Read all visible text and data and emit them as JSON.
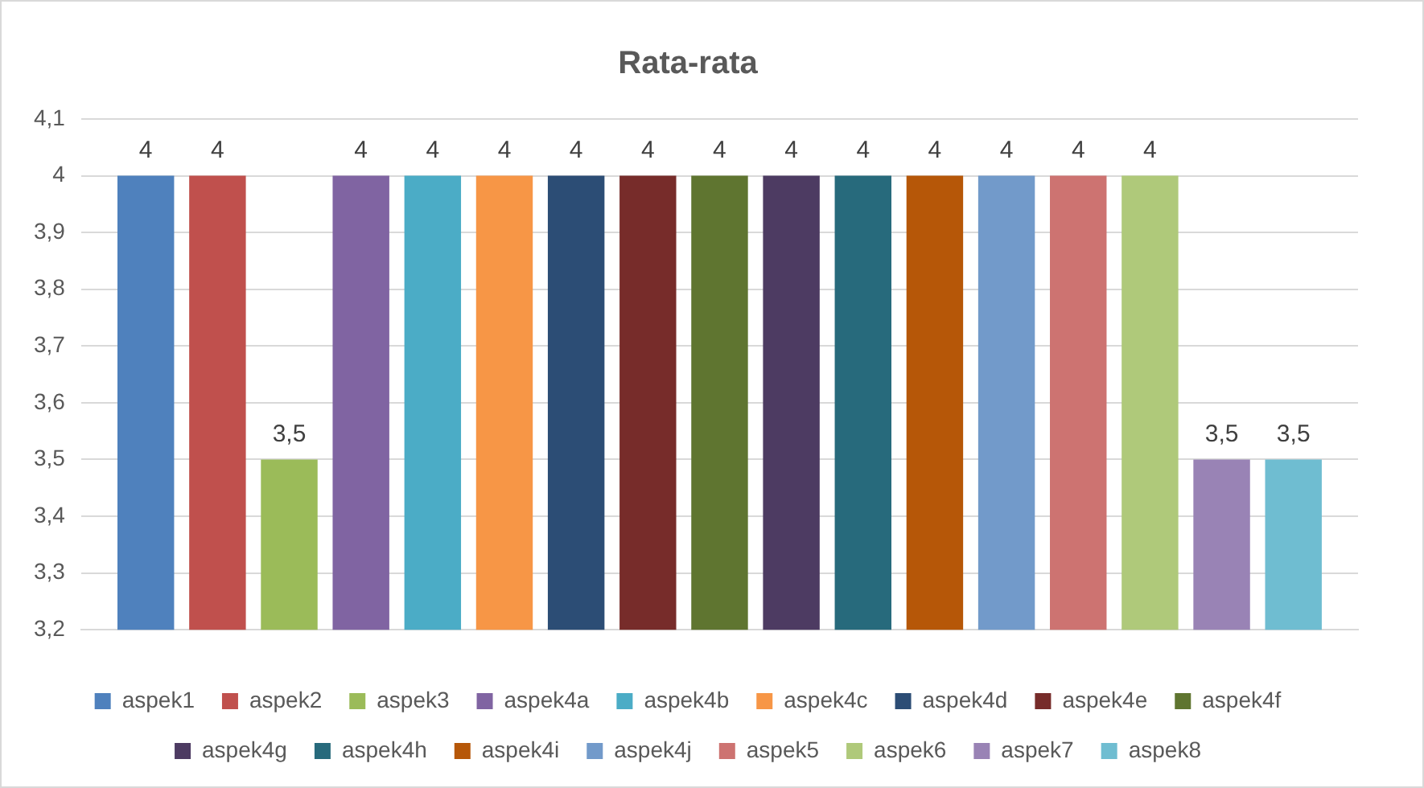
{
  "chart_data": {
    "type": "bar",
    "title": "Rata-rata",
    "categories": [
      null
    ],
    "series": [
      {
        "name": "aspek1",
        "color": "#4f81bd",
        "values": [
          4
        ],
        "value_labels": [
          "4"
        ]
      },
      {
        "name": "aspek2",
        "color": "#c0504d",
        "values": [
          4
        ],
        "value_labels": [
          "4"
        ]
      },
      {
        "name": "aspek3",
        "color": "#9bbb59",
        "values": [
          3.5
        ],
        "value_labels": [
          "3,5"
        ]
      },
      {
        "name": "aspek4a",
        "color": "#8064a2",
        "values": [
          4
        ],
        "value_labels": [
          "4"
        ]
      },
      {
        "name": "aspek4b",
        "color": "#4bacc6",
        "values": [
          4
        ],
        "value_labels": [
          "4"
        ]
      },
      {
        "name": "aspek4c",
        "color": "#f79646",
        "values": [
          4
        ],
        "value_labels": [
          "4"
        ]
      },
      {
        "name": "aspek4d",
        "color": "#2c4d75",
        "values": [
          4
        ],
        "value_labels": [
          "4"
        ]
      },
      {
        "name": "aspek4e",
        "color": "#772c2a",
        "values": [
          4
        ],
        "value_labels": [
          "4"
        ]
      },
      {
        "name": "aspek4f",
        "color": "#5f7530",
        "values": [
          4
        ],
        "value_labels": [
          "4"
        ]
      },
      {
        "name": "aspek4g",
        "color": "#4d3b62",
        "values": [
          4
        ],
        "value_labels": [
          "4"
        ]
      },
      {
        "name": "aspek4h",
        "color": "#276a7c",
        "values": [
          4
        ],
        "value_labels": [
          "4"
        ]
      },
      {
        "name": "aspek4i",
        "color": "#b65708",
        "values": [
          4
        ],
        "value_labels": [
          "4"
        ]
      },
      {
        "name": "aspek4j",
        "color": "#729aca",
        "values": [
          4
        ],
        "value_labels": [
          "4"
        ]
      },
      {
        "name": "aspek5",
        "color": "#cd7371",
        "values": [
          4
        ],
        "value_labels": [
          "4"
        ]
      },
      {
        "name": "aspek6",
        "color": "#afc97a",
        "values": [
          4
        ],
        "value_labels": [
          "4"
        ]
      },
      {
        "name": "aspek7",
        "color": "#9983b5",
        "values": [
          3.5
        ],
        "value_labels": [
          "3,5"
        ]
      },
      {
        "name": "aspek8",
        "color": "#6fbdd1",
        "values": [
          3.5
        ],
        "value_labels": [
          "3,5"
        ]
      }
    ],
    "ylim": [
      3.2,
      4.1
    ],
    "yticks": [
      {
        "value": 3.2,
        "label": "3,2"
      },
      {
        "value": 3.3,
        "label": "3,3"
      },
      {
        "value": 3.4,
        "label": "3,4"
      },
      {
        "value": 3.5,
        "label": "3,5"
      },
      {
        "value": 3.6,
        "label": "3,6"
      },
      {
        "value": 3.7,
        "label": "3,7"
      },
      {
        "value": 3.8,
        "label": "3,8"
      },
      {
        "value": 3.9,
        "label": "3,9"
      },
      {
        "value": 4,
        "label": "4"
      },
      {
        "value": 4.1,
        "label": "4,1"
      }
    ],
    "grid": "y",
    "legend": "bottom"
  }
}
